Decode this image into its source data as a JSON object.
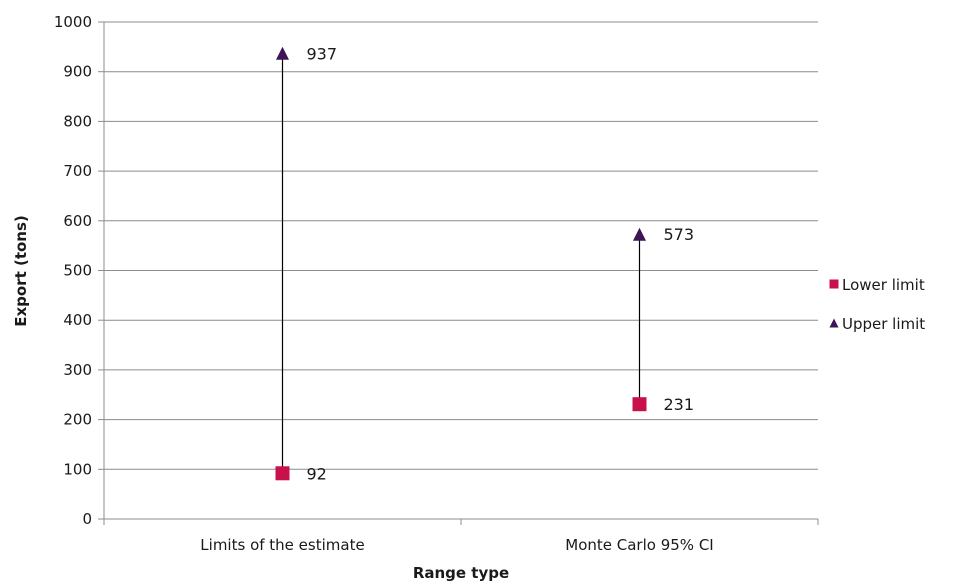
{
  "chart_data": {
    "type": "scatter",
    "title": "",
    "xlabel": "Range type",
    "ylabel": "Export (tons)",
    "categories": [
      "Limits of the estimate",
      "Monte Carlo 95% CI"
    ],
    "ylim": [
      0,
      1000
    ],
    "yticks": [
      0,
      100,
      200,
      300,
      400,
      500,
      600,
      700,
      800,
      900,
      1000
    ],
    "grid": true,
    "legend_position": "right",
    "series": [
      {
        "name": "Lower limit",
        "marker": "square",
        "color": "#c8104b",
        "values": [
          92,
          231
        ]
      },
      {
        "name": "Upper limit",
        "marker": "triangle",
        "color": "#3f1456",
        "values": [
          937,
          573
        ]
      }
    ],
    "range_lines": true,
    "colors": {
      "grid": "#8c8c8c",
      "axis": "#8c8c8c",
      "range_line": "#000000",
      "text": "#1a1a1a"
    }
  }
}
